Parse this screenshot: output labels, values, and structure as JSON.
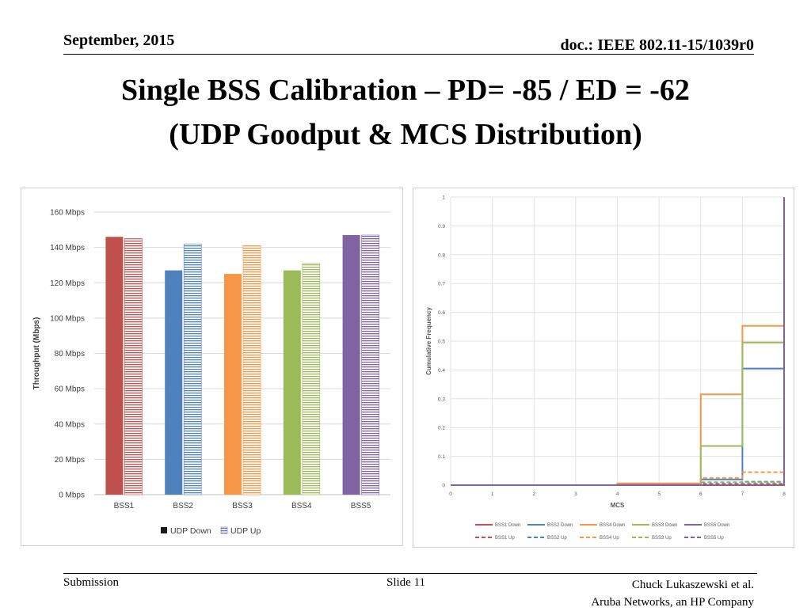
{
  "header": {
    "date": "September, 2015",
    "doc": "doc.: IEEE 802.11-15/1039r0"
  },
  "title": {
    "line1": "Single BSS Calibration – PD= -85 / ED = -62",
    "line2": "(UDP Goodput & MCS Distribution)"
  },
  "footer": {
    "left": "Submission",
    "center": "Slide 11",
    "right_line1": "Chuck Lukaszewski et al.",
    "right_line2": "Aruba Networks, an HP Company"
  },
  "chart_data": [
    {
      "type": "bar",
      "ylabel": "Throughput (Mbps)",
      "xlabel": "",
      "ylim": [
        0,
        160
      ],
      "ytick_labels": [
        "0 Mbps",
        "20 Mbps",
        "40 Mbps",
        "60 Mbps",
        "80 Mbps",
        "100 Mbps",
        "120 Mbps",
        "140 Mbps",
        "160 Mbps"
      ],
      "categories": [
        "BSS1",
        "BSS2",
        "BSS3",
        "BSS4",
        "BSS5"
      ],
      "colors": [
        "#c0504d",
        "#4f81bd",
        "#f79646",
        "#9bbb59",
        "#8064a2"
      ],
      "series": [
        {
          "name": "UDP Down",
          "style": "solid",
          "values": [
            146,
            127,
            125,
            127,
            147
          ]
        },
        {
          "name": "UDP Up",
          "style": "hatched",
          "values": [
            145,
            142,
            141,
            131,
            147
          ]
        }
      ],
      "legend_position": "bottom",
      "grid": true
    },
    {
      "type": "line",
      "xlabel": "MCS",
      "ylabel": "Cumulative Frequency",
      "xlim": [
        0,
        8
      ],
      "ylim": [
        0,
        1
      ],
      "xticks": [
        "0",
        "1",
        "2",
        "3",
        "4",
        "5",
        "6",
        "7",
        "8"
      ],
      "yticks": [
        "0",
        "0.1",
        "0.2",
        "0.3",
        "0.4",
        "0.5",
        "0.6",
        "0.7",
        "0.8",
        "0.9",
        "1"
      ],
      "grid": true,
      "legend_position": "bottom",
      "series": [
        {
          "name": "BSS1 Down",
          "color": "#c0504d",
          "dash": false,
          "points": [
            [
              0,
              0
            ],
            [
              8,
              0
            ],
            [
              8,
              1
            ]
          ]
        },
        {
          "name": "BSS2 Down",
          "color": "#4f81bd",
          "dash": false,
          "points": [
            [
              0,
              0
            ],
            [
              4,
              0
            ],
            [
              4,
              0.003
            ],
            [
              6,
              0.003
            ],
            [
              6,
              0.02
            ],
            [
              7,
              0.02
            ],
            [
              7,
              0.405
            ],
            [
              8,
              0.405
            ],
            [
              8,
              1
            ]
          ]
        },
        {
          "name": "BSS4 Down",
          "color": "#f79646",
          "dash": false,
          "points": [
            [
              0,
              0
            ],
            [
              4,
              0
            ],
            [
              4,
              0.006
            ],
            [
              6,
              0.006
            ],
            [
              6,
              0.315
            ],
            [
              7,
              0.315
            ],
            [
              7,
              0.553
            ],
            [
              8,
              0.553
            ],
            [
              8,
              1
            ]
          ]
        },
        {
          "name": "BSS3 Down",
          "color": "#9bbb59",
          "dash": false,
          "points": [
            [
              0,
              0
            ],
            [
              6,
              0
            ],
            [
              6,
              0.136
            ],
            [
              7,
              0.136
            ],
            [
              7,
              0.495
            ],
            [
              8,
              0.495
            ],
            [
              8,
              1
            ]
          ]
        },
        {
          "name": "BSS5 Down",
          "color": "#8064a2",
          "dash": false,
          "points": [
            [
              0,
              0
            ],
            [
              8,
              0
            ],
            [
              8,
              1
            ]
          ]
        },
        {
          "name": "BSS1 Up",
          "color": "#c0504d",
          "dash": true,
          "points": [
            [
              0,
              0
            ],
            [
              8,
              0
            ],
            [
              8,
              1
            ]
          ]
        },
        {
          "name": "BSS2 Up",
          "color": "#4f81bd",
          "dash": true,
          "points": [
            [
              0,
              0
            ],
            [
              6,
              0
            ],
            [
              6,
              0.01
            ],
            [
              7,
              0.01
            ],
            [
              7,
              0.012
            ],
            [
              8,
              0.012
            ],
            [
              8,
              1
            ]
          ]
        },
        {
          "name": "BSS4 Up",
          "color": "#f79646",
          "dash": true,
          "points": [
            [
              0,
              0
            ],
            [
              6,
              0
            ],
            [
              6,
              0.025
            ],
            [
              7,
              0.025
            ],
            [
              7,
              0.045
            ],
            [
              8,
              0.045
            ],
            [
              8,
              1
            ]
          ]
        },
        {
          "name": "BSS3 Up",
          "color": "#9bbb59",
          "dash": true,
          "points": [
            [
              0,
              0
            ],
            [
              6,
              0
            ],
            [
              6,
              0.01
            ],
            [
              8,
              0.01
            ],
            [
              8,
              1
            ]
          ]
        },
        {
          "name": "BSS5 Up",
          "color": "#8064a2",
          "dash": true,
          "points": [
            [
              0,
              0
            ],
            [
              6,
              0
            ],
            [
              6,
              0.004
            ],
            [
              8,
              0.004
            ],
            [
              8,
              1
            ]
          ]
        }
      ]
    }
  ]
}
